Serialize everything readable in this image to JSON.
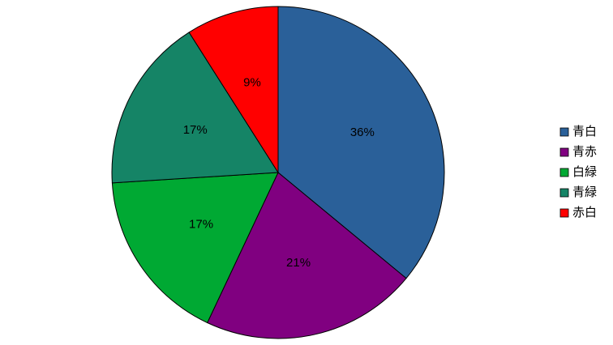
{
  "chart_data": {
    "type": "pie",
    "categories": [
      "青白",
      "青赤",
      "白緑",
      "青緑",
      "赤白"
    ],
    "values": [
      36,
      21,
      17,
      17,
      9
    ],
    "value_labels": [
      "36%",
      "21%",
      "17%",
      "17%",
      "9%"
    ],
    "colors": [
      "#2a6099",
      "#800080",
      "#00a933",
      "#158466",
      "#ff0000"
    ],
    "legend": "right"
  }
}
